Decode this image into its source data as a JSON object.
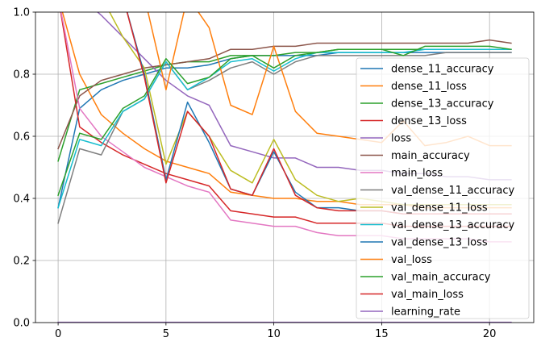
{
  "chart_data": {
    "type": "line",
    "title": "",
    "xlabel": "",
    "ylabel": "",
    "xlim": [
      -1.05,
      22.05
    ],
    "ylim": [
      0,
      1
    ],
    "xticks": [
      0,
      5,
      10,
      15,
      20
    ],
    "yticks": [
      0.0,
      0.2,
      0.4,
      0.6,
      0.8,
      1.0
    ],
    "xtick_labels": [
      "0",
      "5",
      "10",
      "15",
      "20"
    ],
    "ytick_labels": [
      "0.0",
      "0.2",
      "0.4",
      "0.6",
      "0.8",
      "1.0"
    ],
    "grid": true,
    "legend_position": "right",
    "x": [
      0,
      1,
      2,
      3,
      4,
      5,
      6,
      7,
      8,
      9,
      10,
      11,
      12,
      13,
      14,
      15,
      16,
      17,
      18,
      19,
      20,
      21
    ],
    "series": [
      {
        "name": "dense_11_accuracy",
        "color": "#1f77b4",
        "values": [
          0.37,
          0.69,
          0.75,
          0.78,
          0.8,
          0.82,
          0.82,
          0.83,
          0.85,
          0.86,
          0.86,
          0.86,
          0.86,
          0.87,
          0.87,
          0.87,
          0.87,
          0.87,
          0.87,
          0.87,
          0.87,
          0.87
        ]
      },
      {
        "name": "dense_11_loss",
        "color": "#ff7f0e",
        "values": [
          1.05,
          0.8,
          0.67,
          0.61,
          0.56,
          0.52,
          0.5,
          0.48,
          0.42,
          0.41,
          0.4,
          0.4,
          0.39,
          0.39,
          0.38,
          0.38,
          0.38,
          0.37,
          0.37,
          0.37,
          0.37,
          0.37
        ]
      },
      {
        "name": "dense_13_accuracy",
        "color": "#2ca02c",
        "values": [
          0.52,
          0.75,
          0.77,
          0.79,
          0.81,
          0.83,
          0.84,
          0.84,
          0.86,
          0.86,
          0.86,
          0.87,
          0.87,
          0.88,
          0.88,
          0.88,
          0.88,
          0.88,
          0.88,
          0.88,
          0.88,
          0.88
        ]
      },
      {
        "name": "dense_13_loss",
        "color": "#d62728",
        "values": [
          1.05,
          0.63,
          0.58,
          0.54,
          0.51,
          0.48,
          0.46,
          0.44,
          0.36,
          0.35,
          0.34,
          0.34,
          0.32,
          0.32,
          0.32,
          0.32,
          0.31,
          0.31,
          0.31,
          0.31,
          0.31,
          0.31
        ]
      },
      {
        "name": "loss",
        "color": "#9467bd",
        "values": [
          1.35,
          1.05,
          0.99,
          0.92,
          0.85,
          0.78,
          0.73,
          0.7,
          0.57,
          0.55,
          0.53,
          0.53,
          0.5,
          0.5,
          0.49,
          0.49,
          0.48,
          0.48,
          0.47,
          0.47,
          0.46,
          0.46
        ]
      },
      {
        "name": "main_accuracy",
        "color": "#8c564b",
        "values": [
          0.56,
          0.73,
          0.78,
          0.8,
          0.82,
          0.83,
          0.84,
          0.85,
          0.88,
          0.88,
          0.89,
          0.89,
          0.9,
          0.9,
          0.9,
          0.9,
          0.9,
          0.9,
          0.9,
          0.9,
          0.91,
          0.9
        ]
      },
      {
        "name": "main_loss",
        "color": "#e377c2",
        "values": [
          1.05,
          0.69,
          0.6,
          0.55,
          0.5,
          0.47,
          0.44,
          0.42,
          0.33,
          0.32,
          0.31,
          0.31,
          0.29,
          0.28,
          0.28,
          0.28,
          0.27,
          0.27,
          0.27,
          0.27,
          0.26,
          0.26
        ]
      },
      {
        "name": "val_dense_11_accuracy",
        "color": "#7f7f7f",
        "values": [
          0.32,
          0.56,
          0.54,
          0.68,
          0.72,
          0.84,
          0.75,
          0.78,
          0.82,
          0.84,
          0.8,
          0.84,
          0.86,
          0.86,
          0.86,
          0.86,
          0.86,
          0.86,
          0.87,
          0.87,
          0.87,
          0.87
        ]
      },
      {
        "name": "val_dense_11_loss",
        "color": "#bcbd22",
        "values": [
          1.05,
          1.05,
          1.05,
          0.92,
          0.82,
          0.51,
          0.68,
          0.6,
          0.49,
          0.45,
          0.59,
          0.46,
          0.41,
          0.39,
          0.4,
          0.39,
          0.38,
          0.38,
          0.38,
          0.38,
          0.38,
          0.38
        ]
      },
      {
        "name": "val_dense_13_accuracy",
        "color": "#17becf",
        "values": [
          0.37,
          0.59,
          0.57,
          0.68,
          0.72,
          0.84,
          0.75,
          0.79,
          0.84,
          0.85,
          0.81,
          0.85,
          0.87,
          0.87,
          0.87,
          0.87,
          0.87,
          0.88,
          0.88,
          0.88,
          0.88,
          0.88
        ]
      },
      {
        "name": "val_dense_13_loss",
        "color": "#1f77b4",
        "values": [
          1.05,
          1.05,
          1.05,
          1.05,
          0.8,
          0.46,
          0.71,
          0.58,
          0.43,
          0.41,
          0.55,
          0.42,
          0.37,
          0.37,
          0.36,
          0.36,
          0.35,
          0.35,
          0.35,
          0.35,
          0.35,
          0.35
        ]
      },
      {
        "name": "val_loss",
        "color": "#ff7f0e",
        "values": [
          1.05,
          1.05,
          1.05,
          1.05,
          1.05,
          0.75,
          1.05,
          0.95,
          0.7,
          0.67,
          0.89,
          0.68,
          0.61,
          0.6,
          0.59,
          0.58,
          0.65,
          0.57,
          0.58,
          0.6,
          0.57,
          0.57
        ]
      },
      {
        "name": "val_main_accuracy",
        "color": "#2ca02c",
        "values": [
          0.41,
          0.61,
          0.59,
          0.69,
          0.73,
          0.85,
          0.77,
          0.79,
          0.85,
          0.86,
          0.82,
          0.86,
          0.87,
          0.88,
          0.88,
          0.88,
          0.86,
          0.89,
          0.89,
          0.89,
          0.89,
          0.88
        ]
      },
      {
        "name": "val_main_loss",
        "color": "#d62728",
        "values": [
          1.05,
          1.05,
          1.05,
          1.05,
          0.79,
          0.45,
          0.68,
          0.6,
          0.43,
          0.41,
          0.56,
          0.41,
          0.37,
          0.36,
          0.36,
          0.36,
          0.35,
          0.35,
          0.35,
          0.35,
          0.35,
          0.35
        ]
      },
      {
        "name": "learning_rate",
        "color": "#9467bd",
        "values": [
          0.001,
          0.001,
          0.001,
          0.001,
          0.001,
          0.001,
          0.001,
          0.001,
          0.001,
          0.001,
          0.001,
          0.001,
          0.001,
          0.001,
          0.001,
          0.001,
          0.001,
          0.001,
          0.001,
          0.001,
          0.001,
          0.001
        ]
      }
    ]
  }
}
